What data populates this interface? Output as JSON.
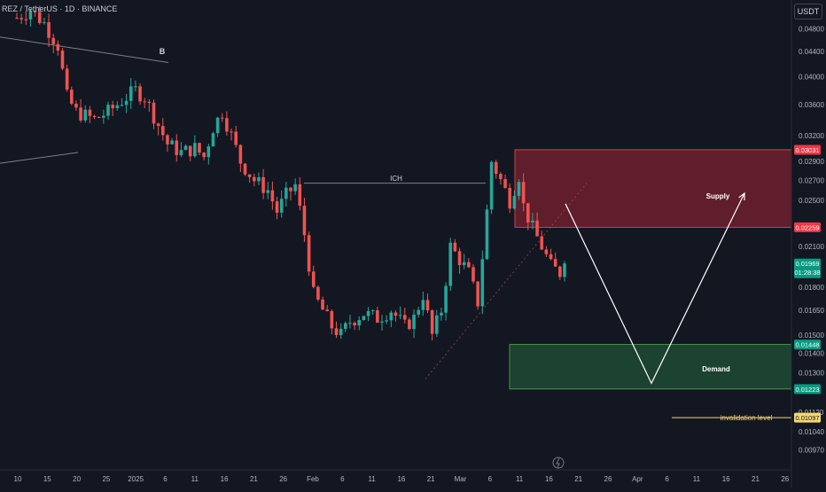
{
  "header": {
    "symbol": "REZ/TetherUS",
    "interval": "1D",
    "exchange": "BINANCE",
    "title": "REZ / TetherUS · 1D · BINANCE",
    "currency": "USDT"
  },
  "colors": {
    "background": "#131722",
    "up": "#26a69a",
    "down": "#ef5350",
    "supply_fill": "#6e1e2e",
    "demand_fill": "#1e4a32",
    "arrow": "#ffffff",
    "trendline": "#7c7f88"
  },
  "chart_data": {
    "type": "candlestick",
    "y_scale": "log",
    "ylim": [
      0.009,
      0.0535
    ],
    "y_ticks": [
      "0.04800",
      "0.04400",
      "0.04000",
      "0.03600",
      "0.03200",
      "0.02900",
      "0.02700",
      "0.02500",
      "0.02100",
      "0.01800",
      "0.01650",
      "0.01500",
      "0.01400",
      "0.01300",
      "0.01120",
      "0.01040",
      "0.00970"
    ],
    "x_ticks": [
      "10",
      "15",
      "20",
      "25",
      "2025",
      "6",
      "11",
      "16",
      "21",
      "26",
      "Feb",
      "6",
      "11",
      "16",
      "21",
      "Mar",
      "6",
      "11",
      "16",
      "21",
      "26",
      "Apr",
      "6",
      "11",
      "16",
      "21",
      "26"
    ],
    "price_path": [
      [
        0,
        0.05
      ],
      [
        3,
        0.0515
      ],
      [
        6,
        0.049
      ],
      [
        9,
        0.045
      ],
      [
        11,
        0.037
      ],
      [
        13,
        0.035
      ],
      [
        15,
        0.0345
      ],
      [
        17,
        0.034
      ],
      [
        20,
        0.035
      ],
      [
        23,
        0.0365
      ],
      [
        26,
        0.038
      ],
      [
        28,
        0.037
      ],
      [
        30,
        0.0345
      ],
      [
        33,
        0.031
      ],
      [
        36,
        0.03
      ],
      [
        39,
        0.0305
      ],
      [
        41,
        0.0295
      ],
      [
        43,
        0.033
      ],
      [
        45,
        0.035
      ],
      [
        47,
        0.032
      ],
      [
        49,
        0.029
      ],
      [
        52,
        0.027
      ],
      [
        55,
        0.026
      ],
      [
        57,
        0.024
      ],
      [
        59,
        0.0255
      ],
      [
        61,
        0.0265
      ],
      [
        63,
        0.022
      ],
      [
        65,
        0.0175
      ],
      [
        67,
        0.0165
      ],
      [
        69,
        0.0155
      ],
      [
        71,
        0.015
      ],
      [
        73,
        0.0158
      ],
      [
        76,
        0.0163
      ],
      [
        79,
        0.016
      ],
      [
        82,
        0.0165
      ],
      [
        85,
        0.0155
      ],
      [
        87,
        0.016
      ],
      [
        89,
        0.0175
      ],
      [
        91,
        0.015
      ],
      [
        93,
        0.0165
      ],
      [
        94,
        0.0185
      ],
      [
        95,
        0.021
      ],
      [
        97,
        0.02
      ],
      [
        99,
        0.019
      ],
      [
        101,
        0.017
      ],
      [
        103,
        0.024
      ],
      [
        104,
        0.029
      ],
      [
        106,
        0.027
      ],
      [
        108,
        0.025
      ],
      [
        110,
        0.0275
      ],
      [
        111,
        0.0245
      ],
      [
        113,
        0.0225
      ],
      [
        115,
        0.021
      ],
      [
        117,
        0.0195
      ],
      [
        119,
        0.019
      ],
      [
        120,
        0.01969
      ]
    ],
    "trend_levels": [
      {
        "name": "B",
        "value": 0.0422
      },
      {
        "name": "ICH",
        "value": 0.0267
      }
    ],
    "zones": [
      {
        "name": "Supply",
        "top": 0.03031,
        "bottom": 0.02259
      },
      {
        "name": "Demand",
        "top": 0.01448,
        "bottom": 0.01223
      }
    ],
    "forecast_path": [
      {
        "date": "Mar 20",
        "value": 0.0247
      },
      {
        "date": "Apr 4",
        "value": 0.0125
      },
      {
        "date": "Apr 20",
        "value": 0.0257
      }
    ],
    "annotations": {
      "b": "B",
      "ich": "ICH",
      "supply": "Supply",
      "demand": "Demand",
      "invalidation": "invalidation level"
    },
    "price_labels": [
      {
        "text": "0.03031",
        "value": 0.03031,
        "color": "#f23645"
      },
      {
        "text": "0.02259",
        "value": 0.02259,
        "color": "#f23645"
      },
      {
        "text": "0.01969",
        "sub": "01:28:38",
        "value": 0.01969,
        "color": "#089981"
      },
      {
        "text": "0.01448",
        "value": 0.01448,
        "color": "#089981"
      },
      {
        "text": "0.01223",
        "value": 0.01223,
        "color": "#089981"
      },
      {
        "text": "0.01097",
        "value": 0.01097,
        "color": "#f5d76e",
        "dark_text": true
      }
    ],
    "invalidation_level": 0.01097
  }
}
